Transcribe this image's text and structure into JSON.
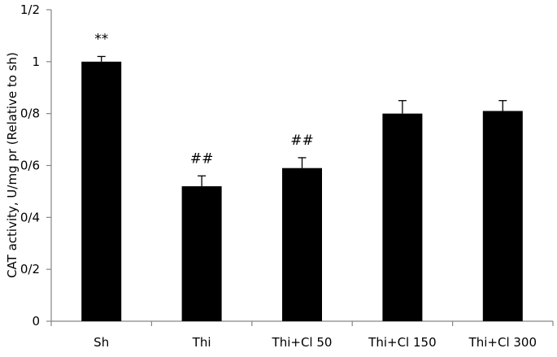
{
  "chart_data": {
    "type": "bar",
    "categories": [
      "Sh",
      "Thi",
      "Thi+Cl 50",
      "Thi+Cl 150",
      "Thi+Cl 300"
    ],
    "values": [
      1.0,
      0.52,
      0.59,
      0.8,
      0.81
    ],
    "errors": [
      0.02,
      0.04,
      0.04,
      0.05,
      0.04
    ],
    "annotations": [
      "**",
      "##",
      "##",
      "",
      ""
    ],
    "ylabel": "CAT activity, U/mg pr (Relative to sh)",
    "ylim": [
      0,
      1.2
    ],
    "yticks": [
      0,
      0.2,
      0.4,
      0.6,
      0.8,
      1,
      1.2
    ],
    "ytick_labels": [
      "0",
      "0/2",
      "0/4",
      "0/6",
      "0/8",
      "1",
      "1/2"
    ],
    "bar_color": "#000000",
    "grid": false
  }
}
